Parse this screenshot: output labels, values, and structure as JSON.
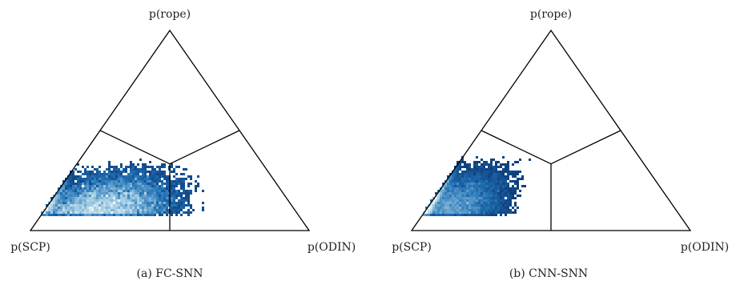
{
  "chart_data": [
    {
      "type": "ternary-density",
      "caption": "(a) FC-SNN",
      "vertex_labels": {
        "top": "p(rope)",
        "left": "p(SCP)",
        "right": "p(ODIN)"
      },
      "decision_boundaries": true,
      "colormap": [
        "#ffffff",
        "#9ecae1",
        "#2171b5",
        "#08306b"
      ],
      "density": {
        "center": {
          "p_scp": 0.72,
          "p_rope": 0.08,
          "p_odin": 0.2
        },
        "spread_bottom": 0.42,
        "spread_rope": 0.28,
        "max_rope": 0.38
      }
    },
    {
      "type": "ternary-density",
      "caption": "(b) CNN-SNN",
      "vertex_labels": {
        "top": "p(rope)",
        "left": "p(SCP)",
        "right": "p(ODIN)"
      },
      "decision_boundaries": true,
      "colormap": [
        "#ffffff",
        "#9ecae1",
        "#2171b5",
        "#08306b"
      ],
      "density": {
        "center": {
          "p_scp": 0.84,
          "p_rope": 0.08,
          "p_odin": 0.08
        },
        "spread_bottom": 0.3,
        "spread_rope": 0.3,
        "max_rope": 0.45
      }
    }
  ]
}
